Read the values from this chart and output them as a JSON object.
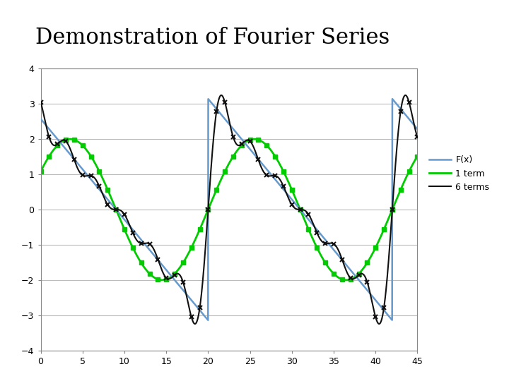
{
  "title": "Demonstration of Fourier Series",
  "title_fontsize": 22,
  "title_font": "serif",
  "xlabel": "",
  "ylabel": "",
  "xlim": [
    0,
    45
  ],
  "ylim": [
    -4,
    4
  ],
  "xticks": [
    0,
    5,
    10,
    15,
    20,
    25,
    30,
    35,
    40,
    45
  ],
  "yticks": [
    -4,
    -3,
    -2,
    -1,
    0,
    1,
    2,
    3,
    4
  ],
  "fx_color": "#6699CC",
  "one_term_color": "#00CC00",
  "six_terms_color": "#111111",
  "legend_labels": [
    "F(x)",
    "1 term",
    "6 terms"
  ],
  "background_color": "#ffffff",
  "grid_color": "#bbbbbb",
  "period": 22.0,
  "amplitude": 3.14159265358979,
  "num_points": 2000
}
